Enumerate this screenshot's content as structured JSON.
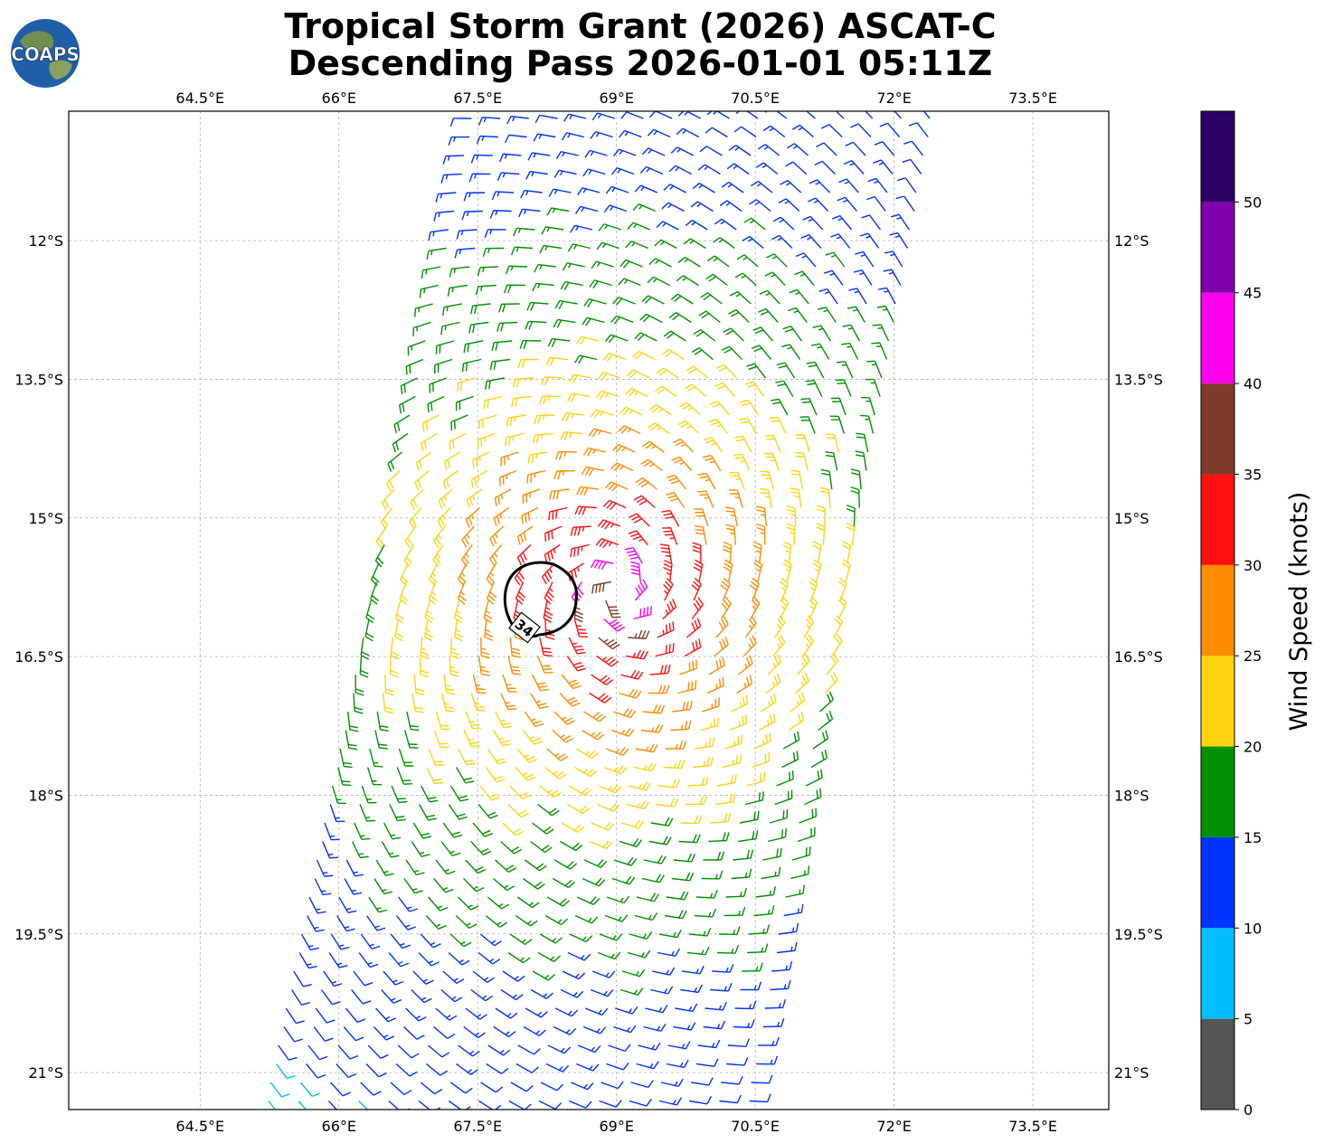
{
  "title": {
    "line1": "Tropical Storm Grant (2026) ASCAT-C",
    "line2": "Descending Pass 2026-01-01 05:11Z"
  },
  "logo": {
    "text": "COAPS",
    "icon": "globe-icon"
  },
  "chart_data": {
    "type": "wind-barb-map",
    "xlabel": "",
    "ylabel": "",
    "x_ticks": [
      64.5,
      66,
      67.5,
      69,
      70.5,
      72,
      73.5
    ],
    "x_tick_labels": [
      "64.5°E",
      "66°E",
      "67.5°E",
      "69°E",
      "70.5°E",
      "72°E",
      "73.5°E"
    ],
    "y_ticks": [
      -12,
      -13.5,
      -15,
      -16.5,
      -18,
      -19.5,
      -21
    ],
    "y_tick_labels": [
      "12°S",
      "13.5°S",
      "15°S",
      "16.5°S",
      "18°S",
      "19.5°S",
      "21°S"
    ],
    "xlim": [
      63.08,
      74.32
    ],
    "ylim": [
      -21.4,
      -10.6
    ],
    "grid": true,
    "storm_center": {
      "lon": 69.0,
      "lat": -15.8
    },
    "wind_contour": {
      "label": "34",
      "units": "knots"
    },
    "swath_corners": [
      [
        67.45,
        -10.6
      ],
      [
        72.4,
        -10.6
      ],
      [
        70.4,
        -21.4
      ],
      [
        65.2,
        -21.4
      ]
    ],
    "colorbar": {
      "title": "Wind Speed (knots)",
      "bounds": [
        0,
        5,
        10,
        15,
        20,
        25,
        30,
        35,
        40,
        45,
        50,
        55
      ],
      "tick_labels": [
        "0",
        "5",
        "10",
        "15",
        "20",
        "25",
        "30",
        "35",
        "40",
        "45",
        "50"
      ],
      "colors": [
        "#555555",
        "#00bfff",
        "#0033ff",
        "#009100",
        "#ffd310",
        "#ff8c00",
        "#ff1010",
        "#7e3b2a",
        "#ff00ef",
        "#8000b0",
        "#2b0062"
      ]
    }
  }
}
